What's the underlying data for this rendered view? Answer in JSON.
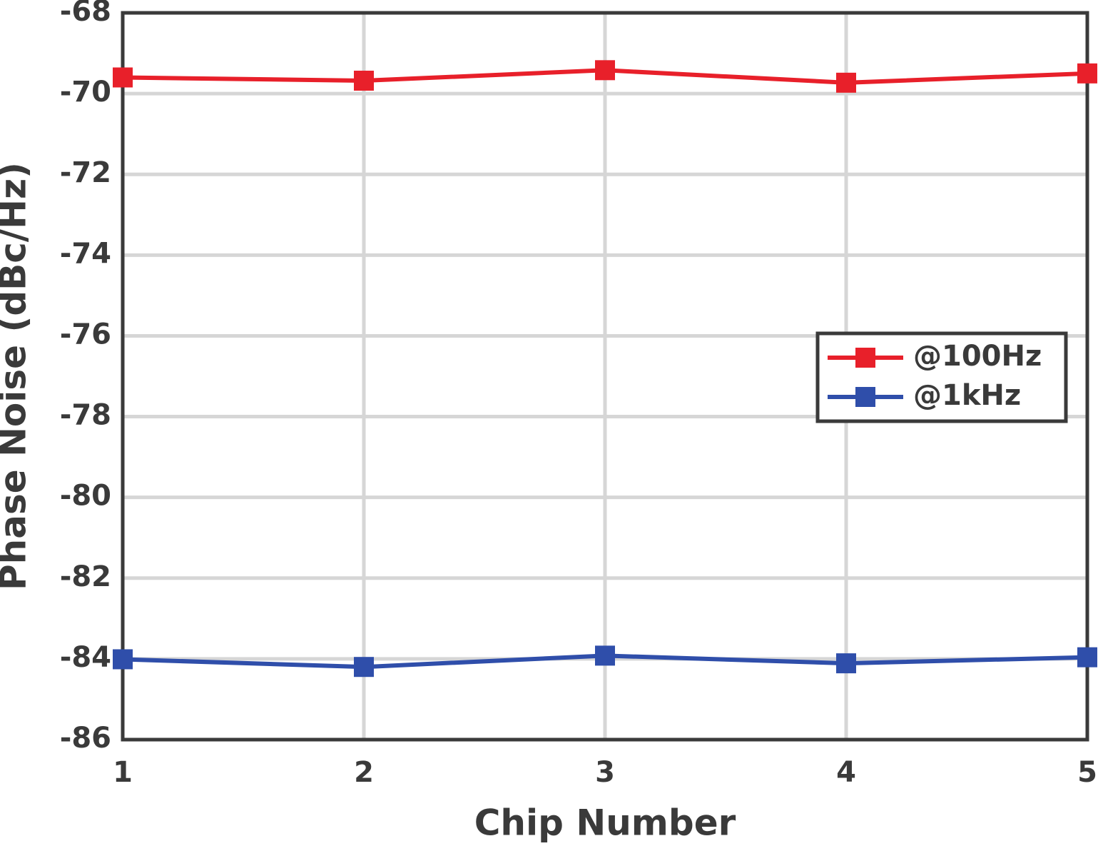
{
  "chart_data": {
    "type": "line",
    "xlabel": "Chip Number",
    "ylabel": "Phase Noise (dBc/Hz)",
    "x": [
      1,
      2,
      3,
      4,
      5
    ],
    "series": [
      {
        "name": "@100Hz",
        "color": "#e8202a",
        "values": [
          -69.6,
          -69.68,
          -69.42,
          -69.73,
          -69.5
        ]
      },
      {
        "name": "@1kHz",
        "color": "#2f4eaa",
        "values": [
          -84.01,
          -84.2,
          -83.92,
          -84.11,
          -83.96
        ]
      }
    ],
    "xlim": [
      1,
      5
    ],
    "xticks": [
      1,
      2,
      3,
      4,
      5
    ],
    "ylim": [
      -86,
      -68
    ],
    "yticks": [
      -86,
      -84,
      -82,
      -80,
      -78,
      -76,
      -74,
      -72,
      -70,
      -68
    ],
    "grid": true,
    "legend": "right"
  }
}
